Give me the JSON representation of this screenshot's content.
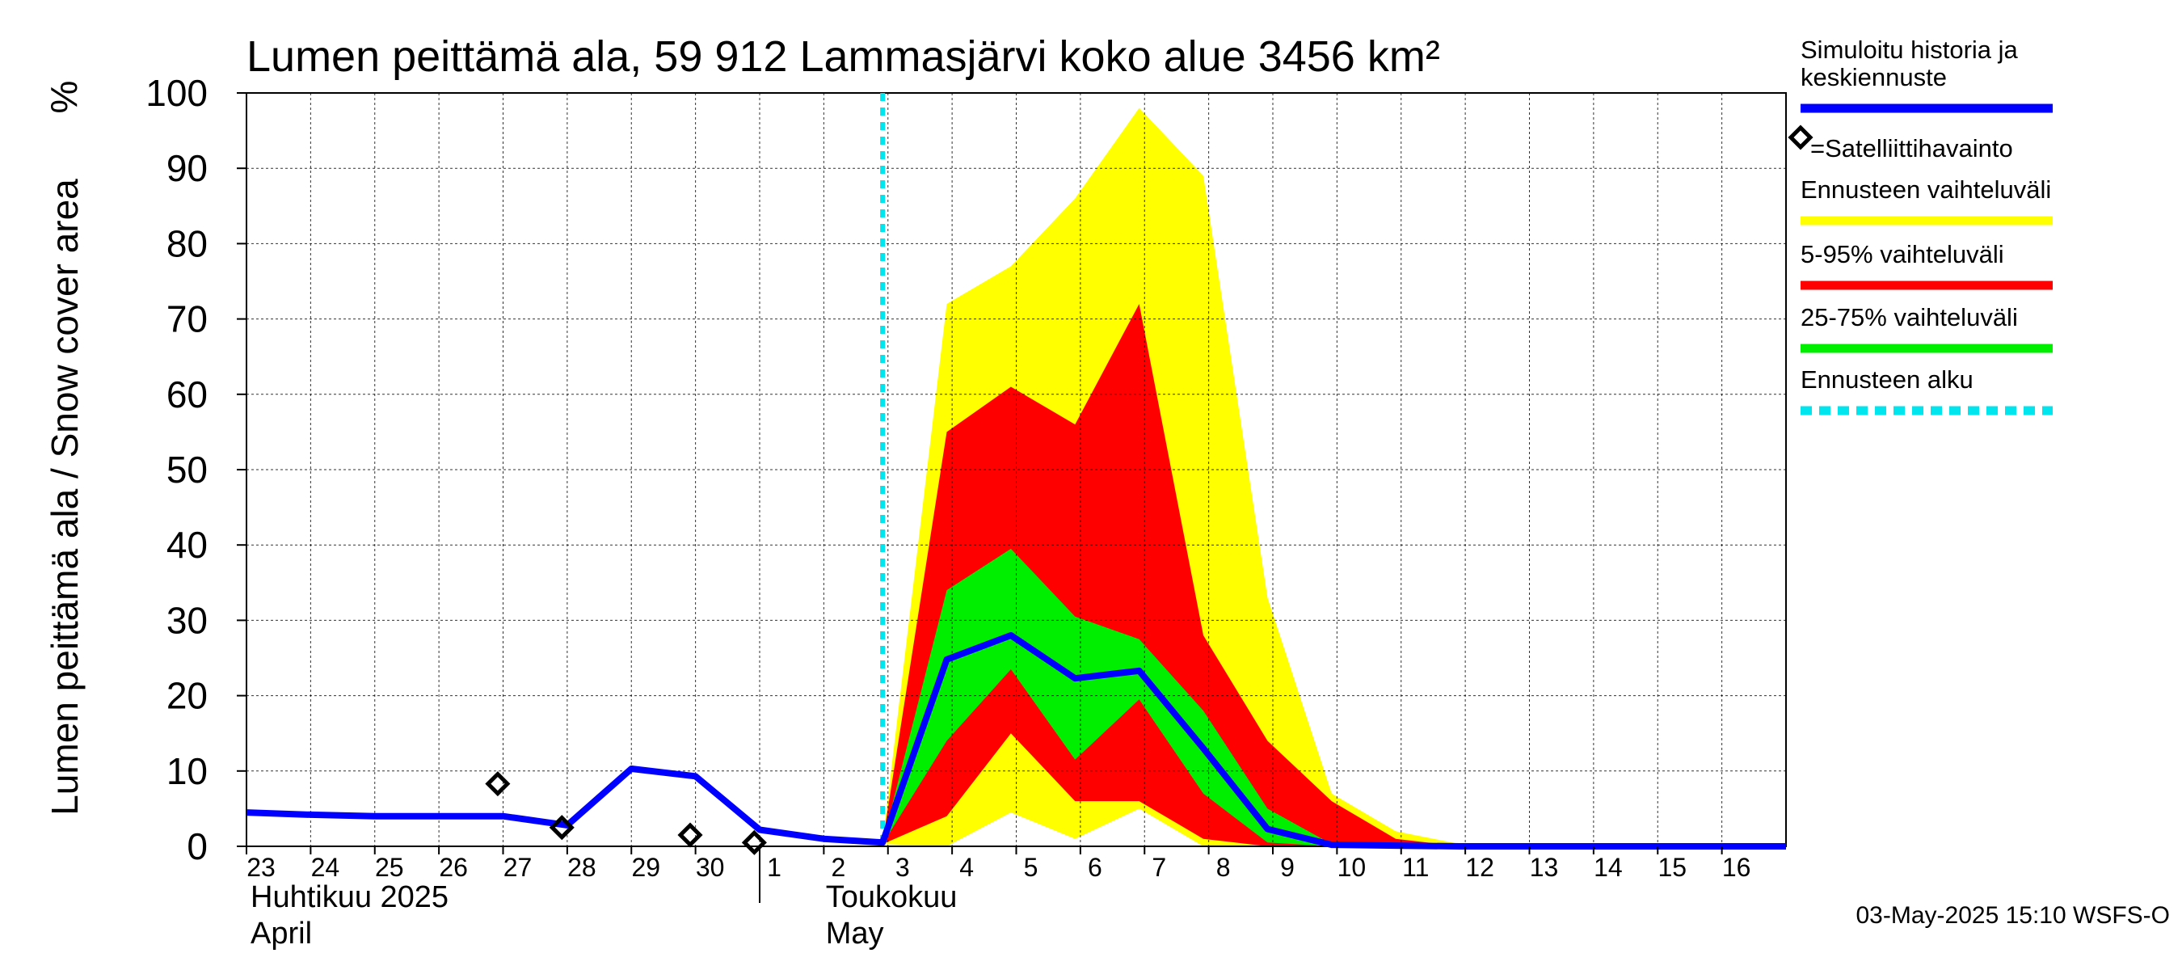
{
  "chart_data": {
    "type": "area",
    "title": "Lumen peittämä ala, 59 912 Lammasjärvi koko alue 3456 km²",
    "ylabel": "Lumen peittämä ala / Snow cover area",
    "yunit": "%",
    "ylim": [
      0,
      100
    ],
    "yticks": [
      0,
      10,
      20,
      30,
      40,
      50,
      60,
      70,
      80,
      90,
      100
    ],
    "xlim": [
      "2025-04-23",
      "2025-05-17"
    ],
    "x_tick_labels": [
      "23",
      "24",
      "25",
      "26",
      "27",
      "28",
      "29",
      "30",
      "1",
      "2",
      "3",
      "4",
      "5",
      "6",
      "7",
      "8",
      "9",
      "10",
      "11",
      "12",
      "13",
      "14",
      "15",
      "16"
    ],
    "month_labels": [
      {
        "line1": "Huhtikuu  2025",
        "line2": "April"
      },
      {
        "line1": "Toukokuu",
        "line2": "May"
      }
    ],
    "grid": true,
    "forecast_start": "2025-05-02T22:00",
    "series": [
      {
        "name": "Simuloitu historia ja keskiennuste",
        "kind": "line",
        "color": "#0000ff",
        "points": [
          [
            "2025-04-23T00:00",
            4.5
          ],
          [
            "2025-04-24T00:00",
            4.2
          ],
          [
            "2025-04-25T00:00",
            4.0
          ],
          [
            "2025-04-26T00:00",
            4.0
          ],
          [
            "2025-04-27T00:00",
            4.0
          ],
          [
            "2025-04-28T00:00",
            2.8
          ],
          [
            "2025-04-29T00:00",
            10.3
          ],
          [
            "2025-04-30T00:00",
            9.3
          ],
          [
            "2025-05-01T00:00",
            2.2
          ],
          [
            "2025-05-02T00:00",
            1.0
          ],
          [
            "2025-05-02T22:00",
            0.5
          ],
          [
            "2025-05-03T22:00",
            24.8
          ],
          [
            "2025-05-04T22:00",
            28.0
          ],
          [
            "2025-05-05T22:00",
            22.3
          ],
          [
            "2025-05-06T22:00",
            23.3
          ],
          [
            "2025-05-07T22:00",
            13.0
          ],
          [
            "2025-05-08T22:00",
            2.3
          ],
          [
            "2025-05-09T22:00",
            0.2
          ],
          [
            "2025-05-10T22:00",
            0.1
          ],
          [
            "2025-05-11T22:00",
            0.0
          ],
          [
            "2025-05-17T00:00",
            0.0
          ]
        ]
      },
      {
        "name": "Ennusteen vaihteluväli",
        "kind": "band",
        "color": "#ffff00",
        "x": [
          "2025-05-02T22:00",
          "2025-05-03T22:00",
          "2025-05-04T22:00",
          "2025-05-05T22:00",
          "2025-05-06T22:00",
          "2025-05-07T22:00",
          "2025-05-08T22:00",
          "2025-05-09T22:00",
          "2025-05-10T22:00",
          "2025-05-11T22:00",
          "2025-05-12T22:00"
        ],
        "lower": [
          0.3,
          0.0,
          4.5,
          1.0,
          5.0,
          0.0,
          0.0,
          0.0,
          0.0,
          0.0,
          0.0
        ],
        "upper": [
          0.5,
          72.0,
          77.0,
          86.0,
          98.0,
          89.0,
          33.0,
          7.0,
          2.0,
          0.3,
          0.0
        ]
      },
      {
        "name": "5-95% vaihteluväli",
        "kind": "band",
        "color": "#ff0000",
        "x": [
          "2025-05-02T22:00",
          "2025-05-03T22:00",
          "2025-05-04T22:00",
          "2025-05-05T22:00",
          "2025-05-06T22:00",
          "2025-05-07T22:00",
          "2025-05-08T22:00",
          "2025-05-09T22:00",
          "2025-05-10T22:00",
          "2025-05-11T22:00"
        ],
        "lower": [
          0.3,
          4.0,
          15.0,
          6.0,
          6.0,
          1.0,
          0.0,
          0.0,
          0.0,
          0.0
        ],
        "upper": [
          0.5,
          55.0,
          61.0,
          56.0,
          72.0,
          28.0,
          14.0,
          6.0,
          1.0,
          0.0
        ]
      },
      {
        "name": "25-75% vaihteluväli",
        "kind": "band",
        "color": "#00ee00",
        "x": [
          "2025-05-02T22:00",
          "2025-05-03T22:00",
          "2025-05-04T22:00",
          "2025-05-05T22:00",
          "2025-05-06T22:00",
          "2025-05-07T22:00",
          "2025-05-08T22:00",
          "2025-05-09T22:00",
          "2025-05-10T22:00"
        ],
        "lower": [
          0.3,
          14.0,
          23.5,
          11.5,
          19.5,
          7.0,
          0.5,
          0.0,
          0.0
        ],
        "upper": [
          0.5,
          34.0,
          39.5,
          30.5,
          27.5,
          18.0,
          5.0,
          0.3,
          0.0
        ]
      }
    ],
    "satellite_observations": {
      "name": "=Satelliittihavainto",
      "points": [
        [
          "2025-04-26T22:00",
          8.3
        ],
        [
          "2025-04-27T22:00",
          2.5
        ],
        [
          "2025-04-29T22:00",
          1.5
        ],
        [
          "2025-04-30T22:00",
          0.5
        ]
      ]
    },
    "legend": {
      "placement": "right",
      "entries": [
        {
          "label": "Simuloitu historia ja keskiennuste",
          "lines": [
            "Simuloitu historia ja",
            "keskiennuste"
          ],
          "color": "#0000ff",
          "style": "line"
        },
        {
          "label": "=Satelliittihavainto",
          "lines": [
            "=Satelliittihavainto"
          ],
          "color": "#000000",
          "style": "diamond"
        },
        {
          "label": "Ennusteen vaihteluväli",
          "lines": [
            "Ennusteen vaihteluväli"
          ],
          "color": "#ffff00",
          "style": "line"
        },
        {
          "label": "5-95% vaihteluväli",
          "lines": [
            "5-95% vaihteluväli"
          ],
          "color": "#ff0000",
          "style": "line"
        },
        {
          "label": "25-75% vaihteluväli",
          "lines": [
            "25-75% vaihteluväli"
          ],
          "color": "#00ee00",
          "style": "line"
        },
        {
          "label": "Ennusteen alku",
          "lines": [
            "Ennusteen alku"
          ],
          "color": "#00e5ee",
          "style": "dashed"
        }
      ]
    },
    "footer": "03-May-2025 15:10 WSFS-O"
  }
}
